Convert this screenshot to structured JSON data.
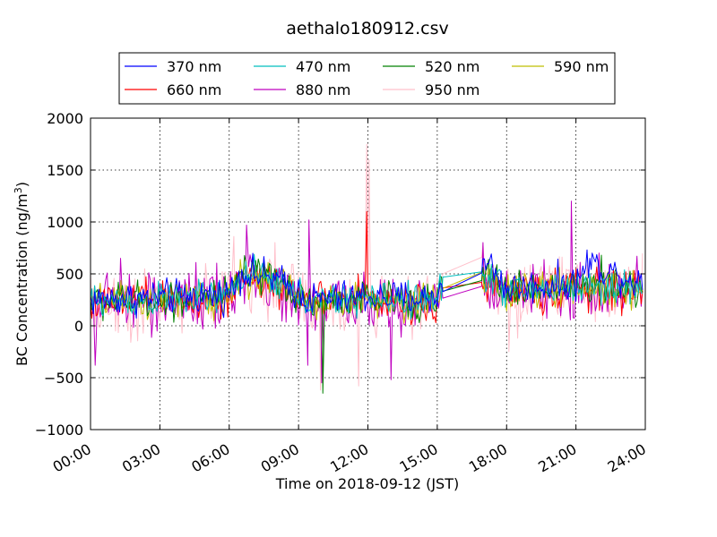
{
  "chart_data": {
    "type": "line",
    "title": "aethalo180912.csv",
    "xlabel": "Time on 2018-09-12 (JST)",
    "ylabel": "BC Concentration (ng/m³)",
    "ylabel_main": "BC Concentration (ng/m",
    "ylabel_sup": "3",
    "ylabel_end": ")",
    "xlim": [
      0,
      24
    ],
    "ylim": [
      -1000,
      2000
    ],
    "x_ticks": [
      0,
      3,
      6,
      9,
      12,
      15,
      18,
      21,
      24
    ],
    "x_tick_labels": [
      "00:00",
      "03:00",
      "06:00",
      "09:00",
      "12:00",
      "15:00",
      "18:00",
      "21:00",
      "24:00"
    ],
    "y_ticks": [
      -1000,
      -500,
      0,
      500,
      1000,
      1500,
      2000
    ],
    "y_tick_labels": [
      "−1000",
      "−500",
      "0",
      "500",
      "1000",
      "1500",
      "2000"
    ],
    "grid": true,
    "legend_position": "top",
    "data_start_hour": 0.0,
    "data_end_hour": 23.9,
    "gap": [
      15.3,
      16.9
    ],
    "series": [
      {
        "name": "370 nm",
        "color": "#0000ff",
        "baseline": [
          [
            0,
            250
          ],
          [
            6,
            300
          ],
          [
            6.5,
            520
          ],
          [
            8,
            450
          ],
          [
            9.5,
            250
          ],
          [
            12,
            280
          ],
          [
            15,
            260
          ],
          [
            15.3,
            550
          ],
          [
            16.9,
            550
          ],
          [
            17.3,
            600
          ],
          [
            18,
            350
          ],
          [
            21,
            420
          ],
          [
            21.5,
            600
          ],
          [
            24,
            400
          ]
        ],
        "noise": 150
      },
      {
        "name": "470 nm",
        "color": "#00bfbf",
        "baseline": [
          [
            0,
            230
          ],
          [
            6,
            280
          ],
          [
            6.5,
            500
          ],
          [
            8,
            430
          ],
          [
            9.5,
            230
          ],
          [
            12,
            260
          ],
          [
            15,
            240
          ],
          [
            15.3,
            480
          ],
          [
            16.9,
            470
          ],
          [
            17.3,
            500
          ],
          [
            18,
            330
          ],
          [
            21,
            380
          ],
          [
            24,
            360
          ]
        ],
        "noise": 150
      },
      {
        "name": "520 nm",
        "color": "#008000",
        "baseline": [
          [
            0,
            230
          ],
          [
            6,
            280
          ],
          [
            6.5,
            500
          ],
          [
            8,
            430
          ],
          [
            9.5,
            230
          ],
          [
            12,
            260
          ],
          [
            15,
            240
          ],
          [
            15.3,
            480
          ],
          [
            16.9,
            460
          ],
          [
            17.3,
            480
          ],
          [
            18,
            330
          ],
          [
            21,
            380
          ],
          [
            24,
            360
          ]
        ],
        "noise": 160
      },
      {
        "name": "590 nm",
        "color": "#bfbf00",
        "baseline": [
          [
            0,
            220
          ],
          [
            6,
            270
          ],
          [
            6.5,
            490
          ],
          [
            8,
            420
          ],
          [
            9.5,
            220
          ],
          [
            12,
            250
          ],
          [
            15,
            230
          ],
          [
            15.3,
            470
          ],
          [
            16.9,
            440
          ],
          [
            17.3,
            470
          ],
          [
            18,
            320
          ],
          [
            21,
            370
          ],
          [
            24,
            350
          ]
        ],
        "noise": 160
      },
      {
        "name": "660 nm",
        "color": "#ff0000",
        "baseline": [
          [
            0,
            220
          ],
          [
            6,
            260
          ],
          [
            6.5,
            480
          ],
          [
            8,
            410
          ],
          [
            9.5,
            220
          ],
          [
            12,
            250
          ],
          [
            15,
            230
          ],
          [
            15.3,
            430
          ],
          [
            16.9,
            420
          ],
          [
            17.3,
            450
          ],
          [
            18,
            320
          ],
          [
            21,
            360
          ],
          [
            24,
            340
          ]
        ],
        "noise": 170
      },
      {
        "name": "880 nm",
        "color": "#bf00bf",
        "baseline": [
          [
            0,
            200
          ],
          [
            6,
            250
          ],
          [
            6.5,
            470
          ],
          [
            8,
            400
          ],
          [
            9.5,
            200
          ],
          [
            12,
            230
          ],
          [
            15,
            220
          ],
          [
            15.3,
            250
          ],
          [
            16.9,
            520
          ],
          [
            17.3,
            300
          ],
          [
            18,
            300
          ],
          [
            21,
            350
          ],
          [
            24,
            330
          ]
        ],
        "noise": 260
      },
      {
        "name": "950 nm",
        "color": "#ffc0cb",
        "baseline": [
          [
            0,
            200
          ],
          [
            6,
            250
          ],
          [
            6.5,
            470
          ],
          [
            8,
            400
          ],
          [
            9.5,
            200
          ],
          [
            12,
            230
          ],
          [
            15,
            220
          ],
          [
            15.3,
            450
          ],
          [
            16.9,
            640
          ],
          [
            17.3,
            300
          ],
          [
            18,
            300
          ],
          [
            21,
            340
          ],
          [
            24,
            320
          ]
        ],
        "noise": 300
      }
    ],
    "spikes": [
      {
        "series": "950 nm",
        "x": 11.95,
        "y": 1750
      },
      {
        "series": "950 nm",
        "x": 12.05,
        "y": 1600
      },
      {
        "series": "660 nm",
        "x": 11.95,
        "y": 1100
      },
      {
        "series": "880 nm",
        "x": 20.8,
        "y": 1200
      },
      {
        "series": "880 nm",
        "x": 9.45,
        "y": 1020
      },
      {
        "series": "880 nm",
        "x": 6.75,
        "y": 970
      },
      {
        "series": "950 nm",
        "x": 6.2,
        "y": 860
      },
      {
        "series": "880 nm",
        "x": 10.0,
        "y": -550
      },
      {
        "series": "520 nm",
        "x": 10.05,
        "y": -650
      },
      {
        "series": "950 nm",
        "x": 9.95,
        "y": -620
      },
      {
        "series": "950 nm",
        "x": 11.6,
        "y": -580
      },
      {
        "series": "880 nm",
        "x": 0.2,
        "y": -380
      },
      {
        "series": "880 nm",
        "x": 13.0,
        "y": -520
      },
      {
        "series": "880 nm",
        "x": 1.3,
        "y": 650
      },
      {
        "series": "880 nm",
        "x": 9.4,
        "y": -380
      },
      {
        "series": "950 nm",
        "x": 18.1,
        "y": -250
      },
      {
        "series": "880 nm",
        "x": 22.0,
        "y": 700
      },
      {
        "series": "520 nm",
        "x": 22.1,
        "y": 680
      },
      {
        "series": "370 nm",
        "x": 21.7,
        "y": 700
      }
    ]
  }
}
